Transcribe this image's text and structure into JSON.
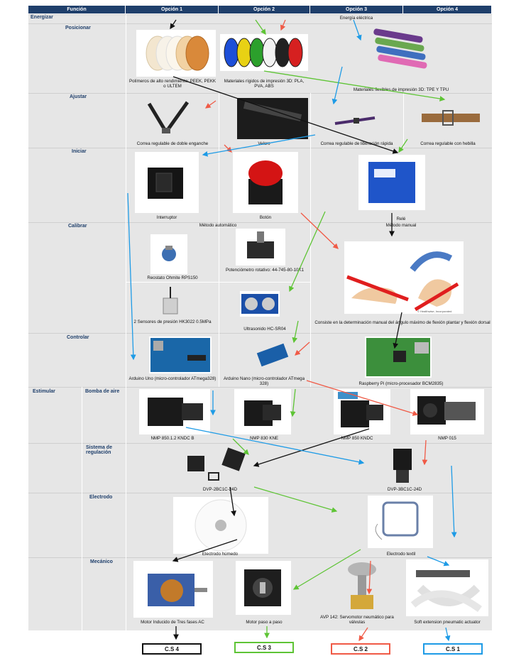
{
  "header": {
    "funcion": "Función",
    "opcion1": "Opción 1",
    "opcion2": "Opción 2",
    "opcion3": "Opción 3",
    "opcion4": "Opción 4"
  },
  "functions": {
    "energizar": "Energizar",
    "posicionar": "Posicionar",
    "ajustar": "Ajustar",
    "iniciar": "Iniciar",
    "calibrar": "Calibrar",
    "controlar": "Controlar",
    "estimular": "Estimular",
    "bomba": "Bomba de aire",
    "sistema": "Sistema de regulación",
    "electrodo": "Electrodo",
    "mecanico": "Mecánico"
  },
  "energizar": {
    "text": "Energía eléctrica"
  },
  "posicionar": {
    "o1": "Polímeros de alto rendimiento: PEEK, PEKK o ULTEM",
    "o2": "Materiales rígidos de impresión 3D: PLA, PVA, ABS",
    "o3": "Materiales flexibles de impresión 3D: TPE Y TPU"
  },
  "ajustar": {
    "o1": "Correa regulable de doble enganche",
    "o2": "Velcro",
    "o3": "Correa regulable de liberación rápida",
    "o4": "Correa regulable con hebilla"
  },
  "iniciar": {
    "o1": "Interruptor",
    "o2": "Botón",
    "o3": "Relé"
  },
  "calibrar": {
    "auto": "Método automático",
    "manual": "Método manual",
    "rpsl": "Reostato Ohmite RPS150",
    "pot": "Potenciómetro rotativo: 44-745-80-10K1",
    "pres": "2 Sensores de presión HK3022 0.5MPa",
    "ultra": "Ultrasonido HC-SR04",
    "manual_desc": "Consiste en la determinación manual del ángulo máximo de flexión plantar y flexión dorsal",
    "credit": "© Healthwise, Incorporated"
  },
  "controlar": {
    "o1": "Arduino Uno (micro-controlador ATmega328)",
    "o2": "Arduino Nano (micro-controlador ATmega 328)",
    "o3": "Raspberry Pi (micro-procesador BCM2835)"
  },
  "bomba": {
    "o1": "NMP 850.1.2 KNDC B",
    "o2": "NMP 830 KNE",
    "o3": "NMP 850 KNDC",
    "o4": "NMP 015"
  },
  "sistema": {
    "o1": "DVP-2BC1C-24D",
    "o2": "DVP-3BC1C-24D"
  },
  "electrodo": {
    "o1": "Electrodo húmedo",
    "o2": "Electrodo textil"
  },
  "mecanico": {
    "o1": "Motor Inducido de Tres fases AC",
    "o2": "Motor paso a paso",
    "o3": "AVP 142: Servomotor neumático para válvulas",
    "o4": "Soft extension pneumatic actuator"
  },
  "cs": {
    "cs4": "C.S 4",
    "cs3": "C.S 3",
    "cs2": "C.S 2",
    "cs1": "C.S 1"
  },
  "colors": {
    "black": "#111111",
    "green": "#5ec435",
    "red": "#f05a46",
    "blue": "#1e9be6",
    "header": "#1f3f6b"
  }
}
